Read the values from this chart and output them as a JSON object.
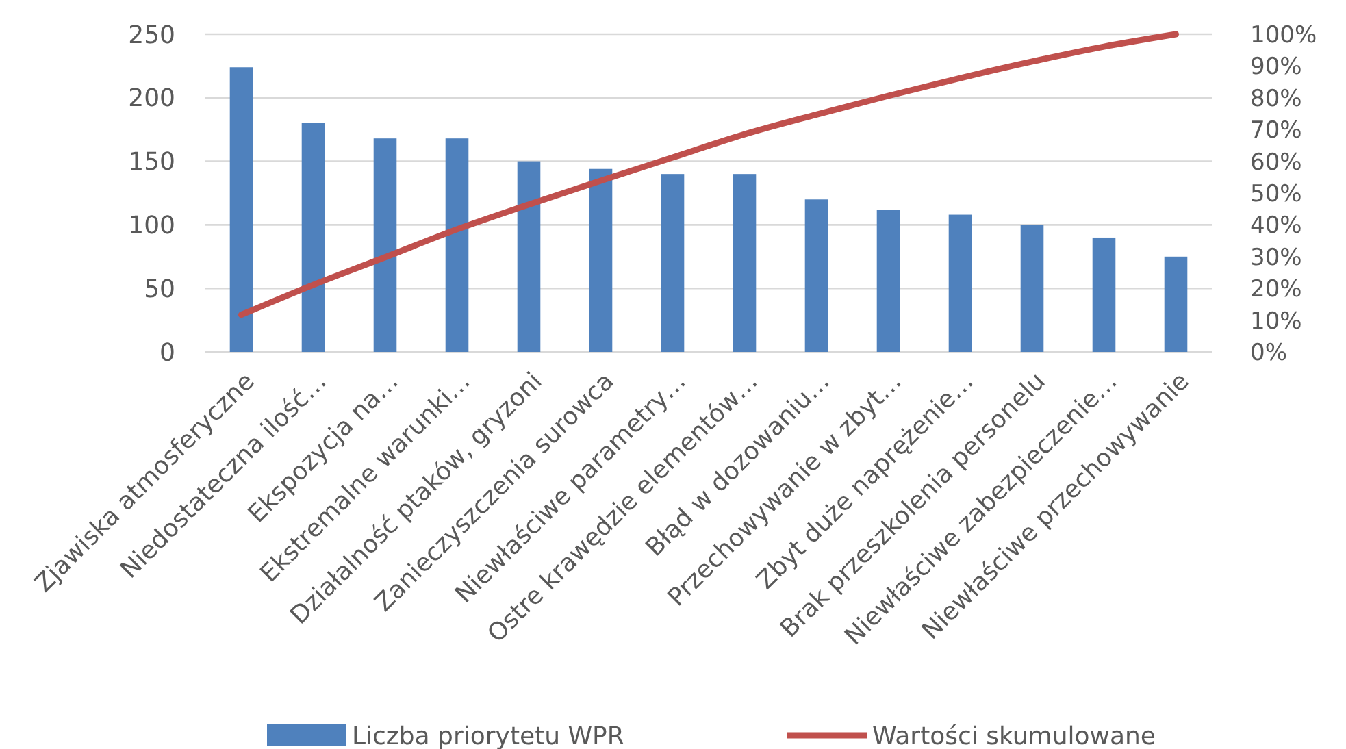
{
  "chart_data": {
    "type": "bar",
    "categories": [
      "Zjawiska atmosferyczne",
      "Niedostateczna ilość…",
      "Ekspozycja na…",
      "Ekstremalne warunki…",
      "Działalność ptaków, gryzoni",
      "Zanieczyszczenia surowca",
      "Niewłaściwe parametry…",
      "Ostre krawędzie elementów…",
      "Błąd w dozowaniu…",
      "Przechowywanie w zbyt…",
      "Zbyt duże naprężenie…",
      "Brak przeszkolenia personelu",
      "Niewłaściwe zabezpieczenie…",
      "Niewłaściwe przechowywanie"
    ],
    "series": [
      {
        "name": "Liczba priorytetu WPR",
        "color": "#4f81bd",
        "values": [
          224,
          180,
          168,
          168,
          150,
          144,
          140,
          140,
          120,
          112,
          108,
          100,
          90,
          75
        ]
      },
      {
        "name": "Wartości skumulowane",
        "type": "line",
        "axis": "y2",
        "color": "#c0504d",
        "values": [
          11.7,
          21.1,
          29.8,
          38.6,
          46.4,
          53.9,
          61.2,
          68.5,
          74.7,
          80.6,
          86.2,
          91.4,
          96.1,
          100
        ]
      }
    ],
    "ylim": [
      0,
      250
    ],
    "yticks": [
      0,
      50,
      100,
      150,
      200,
      250
    ],
    "y2lim": [
      0,
      100
    ],
    "y2ticks": [
      {
        "value": 0,
        "label": "0%"
      },
      {
        "value": 10,
        "label": "10%"
      },
      {
        "value": 20,
        "label": "20%"
      },
      {
        "value": 30,
        "label": "30%"
      },
      {
        "value": 40,
        "label": "40%"
      },
      {
        "value": 50,
        "label": "50%"
      },
      {
        "value": 60,
        "label": "60%"
      },
      {
        "value": 70,
        "label": "70%"
      },
      {
        "value": 80,
        "label": "80%"
      },
      {
        "value": 90,
        "label": "90%"
      },
      {
        "value": 100,
        "label": "100%"
      }
    ],
    "grid": "y",
    "legend": "bottom",
    "marker": "none",
    "line_style": "solid"
  }
}
